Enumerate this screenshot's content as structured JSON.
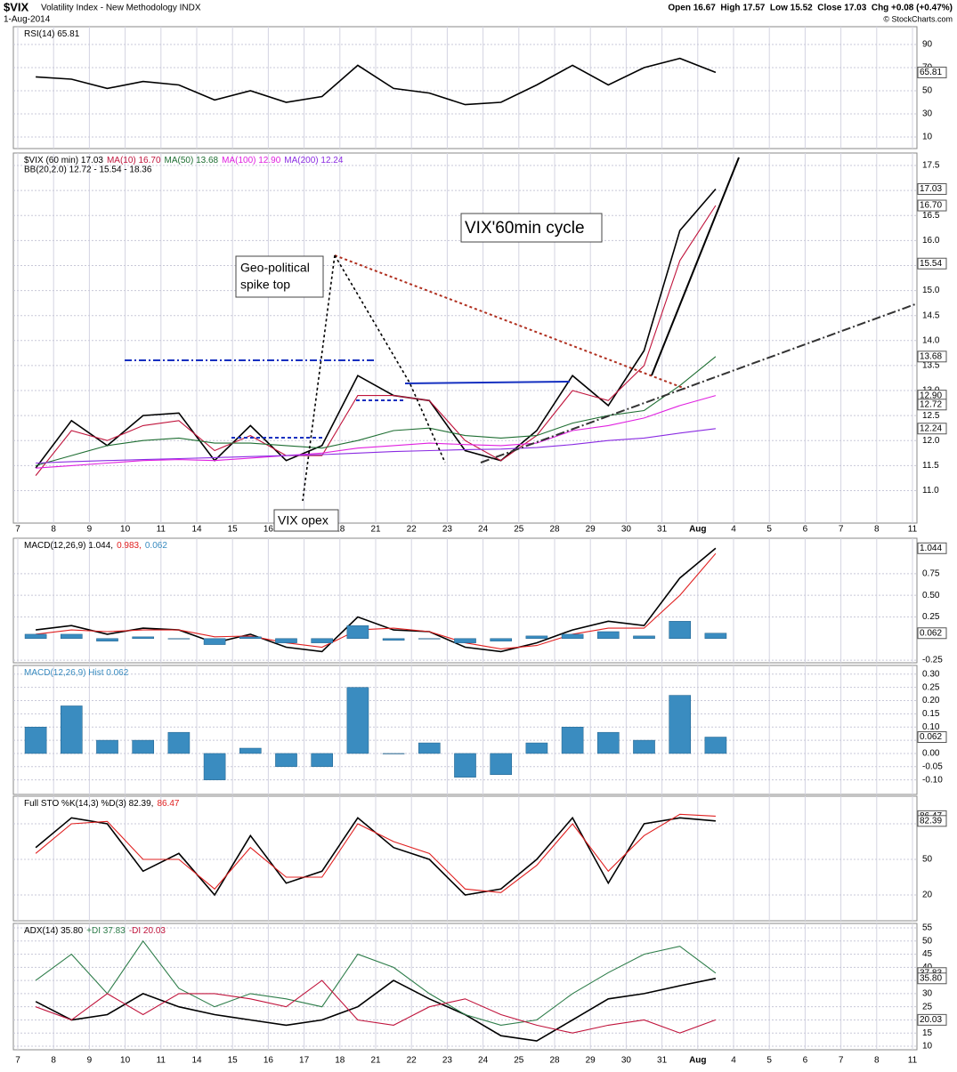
{
  "header": {
    "symbol": "$VIX",
    "name": "Volatility Index - New Methodology INDX",
    "date": "1-Aug-2014",
    "quote": "Open 16.67  High 17.57  Low 15.52  Close 17.03  Chg +0.08 (+0.47%)",
    "credit": "© StockCharts.com"
  },
  "annotations": {
    "cycle": "VIX'60min cycle",
    "spike": [
      "Geo-political",
      "spike top"
    ],
    "opex": "VIX opex"
  },
  "chart_data": [
    {
      "type": "line",
      "ylim": [
        0,
        100
      ],
      "yticks": [
        90,
        70,
        50,
        30,
        10
      ],
      "series": [
        {
          "name": "RSI(14) 65.81",
          "color": "#000000",
          "values": [
            62,
            60,
            52,
            58,
            55,
            42,
            50,
            40,
            45,
            72,
            52,
            48,
            38,
            40,
            55,
            72,
            55,
            70,
            78,
            65.81,
            null,
            null,
            null,
            null,
            null,
            null
          ]
        }
      ],
      "value_boxes": [
        65.81
      ]
    },
    {
      "type": "line",
      "ylim": [
        10.35,
        17.75
      ],
      "bb_label": "BB(20,2.0) 12.72 - 15.54 - 18.36",
      "categories": [
        "7",
        "8",
        "9",
        "10",
        "11",
        "14",
        "15",
        "16",
        "17",
        "18",
        "21",
        "22",
        "23",
        "24",
        "25",
        "28",
        "29",
        "30",
        "31",
        "Aug",
        "4",
        "5",
        "6",
        "7",
        "8",
        "11"
      ],
      "yticks": [
        {
          "value": 11,
          "label": "11.0"
        },
        11.5,
        {
          "value": 12,
          "label": "12.0"
        },
        12.5,
        {
          "value": 13,
          "label": "13.0"
        },
        13.5,
        {
          "value": 14,
          "label": "14.0"
        },
        14.5,
        {
          "value": 15,
          "label": "15.0"
        },
        15.5,
        {
          "value": 16,
          "label": "16.0"
        },
        16.5,
        {
          "value": 17,
          "label": "17.0"
        },
        17.5
      ],
      "series": [
        {
          "name": "$VIX (60 min) 17.03",
          "color": "#000000",
          "values": [
            11.45,
            12.4,
            11.9,
            12.5,
            12.55,
            11.6,
            12.3,
            11.6,
            11.9,
            13.3,
            12.9,
            12.8,
            11.8,
            11.6,
            12.2,
            13.3,
            12.7,
            13.8,
            16.2,
            17.03,
            null,
            null,
            null,
            null,
            null,
            null
          ]
        },
        {
          "name": "MA(10) 16.70",
          "color": "#c0143c",
          "values": [
            11.3,
            12.2,
            12.0,
            12.3,
            12.4,
            11.8,
            12.1,
            11.7,
            11.7,
            12.9,
            12.9,
            12.8,
            12.0,
            11.6,
            12.1,
            13.0,
            12.8,
            13.5,
            15.6,
            16.7,
            null,
            null,
            null,
            null,
            null,
            null
          ]
        },
        {
          "name": "MA(50) 13.68",
          "color": "#1e6e32",
          "values": [
            11.5,
            11.7,
            11.9,
            12.0,
            12.05,
            11.95,
            11.95,
            11.9,
            11.85,
            12.0,
            12.2,
            12.25,
            12.1,
            12.05,
            12.1,
            12.35,
            12.5,
            12.6,
            13.1,
            13.68,
            null,
            null,
            null,
            null,
            null,
            null
          ]
        },
        {
          "name": "MA(100) 12.90",
          "color": "#e020e0",
          "values": [
            11.45,
            11.5,
            11.55,
            11.6,
            11.62,
            11.6,
            11.65,
            11.7,
            11.75,
            11.85,
            11.9,
            11.95,
            11.92,
            11.9,
            11.95,
            12.2,
            12.3,
            12.45,
            12.7,
            12.9,
            null,
            null,
            null,
            null,
            null,
            null
          ]
        },
        {
          "name": "MA(200) 12.24",
          "color": "#8a2be2",
          "values": [
            11.55,
            11.58,
            11.6,
            11.62,
            11.64,
            11.66,
            11.68,
            11.7,
            11.72,
            11.75,
            11.78,
            11.8,
            11.82,
            11.83,
            11.86,
            11.92,
            12.0,
            12.05,
            12.15,
            12.24,
            null,
            null,
            null,
            null,
            null,
            null
          ]
        }
      ],
      "value_boxes": [
        17.03,
        {
          "value": 16.7,
          "label": "16.70"
        },
        15.54,
        13.68,
        {
          "value": 12.9,
          "label": "12.90"
        },
        12.72,
        12.24
      ]
    },
    {
      "type": "line",
      "ylim": [
        -0.28,
        1.16
      ],
      "yticks": [
        0.75,
        {
          "value": 0.5,
          "label": "0.50"
        },
        0.25,
        -0.25
      ],
      "series": [
        {
          "name": "MACD(12,26,9) 1.044,",
          "color": "#000000",
          "values": [
            0.1,
            0.15,
            0.05,
            0.12,
            0.1,
            -0.05,
            0.05,
            -0.1,
            -0.15,
            0.25,
            0.1,
            0.08,
            -0.1,
            -0.15,
            -0.05,
            0.1,
            0.2,
            0.15,
            0.7,
            1.044,
            null,
            null,
            null,
            null,
            null,
            null
          ]
        },
        {
          "name": "0.983,",
          "color": "#e02020",
          "values": [
            0.05,
            0.1,
            0.08,
            0.1,
            0.1,
            0.02,
            0.03,
            -0.05,
            -0.1,
            0.1,
            0.12,
            0.08,
            -0.05,
            -0.12,
            -0.08,
            0.05,
            0.12,
            0.12,
            0.5,
            0.983,
            null,
            null,
            null,
            null,
            null,
            null
          ]
        },
        {
          "name": "0.062",
          "color": "#3a8cc0",
          "kind": "bar",
          "values": [
            0.05,
            0.05,
            -0.03,
            0.02,
            0.0,
            -0.07,
            0.02,
            -0.05,
            -0.05,
            0.15,
            -0.02,
            0.0,
            -0.05,
            -0.03,
            0.03,
            0.05,
            0.08,
            0.03,
            0.2,
            0.062,
            null,
            null,
            null,
            null,
            null,
            null
          ]
        }
      ],
      "value_boxes": [
        1.044,
        0.062
      ]
    },
    {
      "type": "bar",
      "ylim": [
        -0.155,
        0.333
      ],
      "yticks": [
        {
          "value": 0.3,
          "label": "0.30"
        },
        0.25,
        {
          "value": 0.2,
          "label": "0.20"
        },
        0.15,
        {
          "value": 0.1,
          "label": "0.10"
        },
        0.05,
        {
          "value": 0,
          "label": "0.00"
        },
        -0.05,
        {
          "value": -0.1,
          "label": "-0.10"
        }
      ],
      "series": [
        {
          "name": "MACD(12,26,9) Hist 0.062",
          "color": "#3a8cc0",
          "values": [
            0.1,
            0.18,
            0.05,
            0.05,
            0.08,
            -0.1,
            0.02,
            -0.05,
            -0.05,
            0.25,
            0.0,
            0.04,
            -0.09,
            -0.08,
            0.04,
            0.1,
            0.08,
            0.05,
            0.22,
            0.062,
            null,
            null,
            null,
            null,
            null,
            null
          ]
        }
      ],
      "value_boxes": [
        0.062
      ]
    },
    {
      "type": "line",
      "ylim": [
        -1.75,
        103.25
      ],
      "yticks": [
        80,
        50,
        20
      ],
      "series": [
        {
          "name": "Full STO %K(14,3) %D(3) 82.39,",
          "color": "#000000",
          "values": [
            60,
            85,
            80,
            40,
            55,
            20,
            70,
            30,
            40,
            85,
            60,
            50,
            20,
            25,
            50,
            85,
            30,
            80,
            85,
            82.39,
            null,
            null,
            null,
            null,
            null,
            null
          ]
        },
        {
          "name": "86.47",
          "color": "#e02020",
          "values": [
            55,
            80,
            82,
            50,
            50,
            25,
            60,
            35,
            35,
            80,
            65,
            55,
            25,
            22,
            45,
            80,
            40,
            70,
            88,
            86.47,
            null,
            null,
            null,
            null,
            null,
            null
          ]
        }
      ],
      "value_boxes": [
        86.47,
        82.39
      ]
    },
    {
      "type": "line",
      "ylim": [
        8.65,
        56.7
      ],
      "yticks": [
        55,
        50,
        45,
        40,
        35,
        30,
        25,
        20,
        15,
        10
      ],
      "series": [
        {
          "name": "ADX(14) 35.80",
          "color": "#000000",
          "values": [
            27,
            20,
            22,
            30,
            25,
            22,
            20,
            18,
            20,
            25,
            35,
            28,
            22,
            14,
            12,
            20,
            28,
            30,
            33,
            35.8,
            null,
            null,
            null,
            null,
            null,
            null
          ]
        },
        {
          "name": "+DI 37.83",
          "color": "#2e7d4a",
          "values": [
            35,
            45,
            30,
            50,
            32,
            25,
            30,
            28,
            25,
            45,
            40,
            30,
            22,
            18,
            20,
            30,
            38,
            45,
            48,
            37.83,
            null,
            null,
            null,
            null,
            null,
            null
          ]
        },
        {
          "name": "-DI 20.03",
          "color": "#c0143c",
          "values": [
            25,
            20,
            30,
            22,
            30,
            30,
            28,
            25,
            35,
            20,
            18,
            25,
            28,
            22,
            18,
            15,
            18,
            20,
            15,
            20.03,
            null,
            null,
            null,
            null,
            null,
            null
          ]
        }
      ],
      "value_boxes": [
        37.83,
        {
          "value": 35.8,
          "label": "35.80"
        },
        20.03
      ]
    }
  ]
}
